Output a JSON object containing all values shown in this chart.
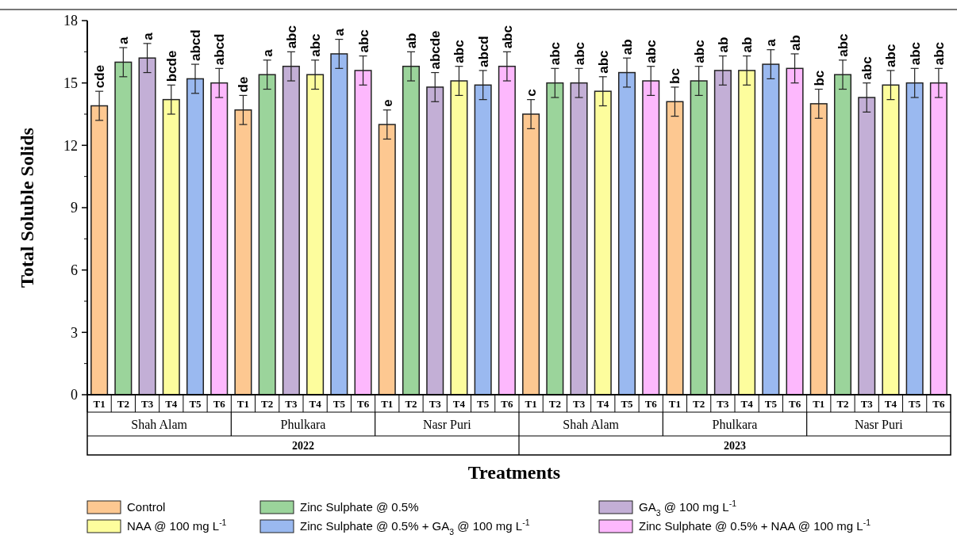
{
  "chart_data": {
    "type": "bar",
    "ylabel": "Total Soluble Solids",
    "xlabel": "Treatments",
    "categories": [
      "T1",
      "T2",
      "T3",
      "T4",
      "T5",
      "T6",
      "T1",
      "T2",
      "T3",
      "T4",
      "T5",
      "T6",
      "T1",
      "T2",
      "T3",
      "T4",
      "T5",
      "T6",
      "T1",
      "T2",
      "T3",
      "T4",
      "T5",
      "T6",
      "T1",
      "T2",
      "T3",
      "T4",
      "T5",
      "T6",
      "T1",
      "T2",
      "T3",
      "T4",
      "T5",
      "T6"
    ],
    "annotations": [
      "Shah Alam",
      "Phulkara",
      "Nasr Puri",
      "Shah Alam",
      "Phulkara",
      "Nasr Puri",
      "2022",
      "2023"
    ],
    "ylim": [
      0,
      18
    ],
    "yticks": [
      0,
      3,
      6,
      9,
      12,
      15,
      18
    ],
    "legend": "bottom",
    "series": [
      {
        "name": "Control",
        "color": "#fdc891",
        "values": [
          13.9,
          null,
          null,
          null,
          null,
          null,
          13.7,
          null,
          null,
          null,
          null,
          null,
          13.0,
          null,
          null,
          null,
          null,
          null,
          13.5,
          null,
          null,
          null,
          null,
          null,
          14.1,
          null,
          null,
          null,
          null,
          null,
          14.0,
          null,
          null,
          null,
          null,
          null
        ],
        "errors": [
          0.7,
          null,
          null,
          null,
          null,
          null,
          0.7,
          null,
          null,
          null,
          null,
          null,
          0.7,
          null,
          null,
          null,
          null,
          null,
          0.7,
          null,
          null,
          null,
          null,
          null,
          0.7,
          null,
          null,
          null,
          null,
          null,
          0.7,
          null,
          null,
          null,
          null,
          null
        ],
        "value_labels": [
          "cde",
          null,
          null,
          null,
          null,
          null,
          "de",
          null,
          null,
          null,
          null,
          null,
          "e",
          null,
          null,
          null,
          null,
          null,
          "c",
          null,
          null,
          null,
          null,
          null,
          "bc",
          null,
          null,
          null,
          null,
          null,
          "bc",
          null,
          null,
          null,
          null,
          null
        ]
      },
      {
        "name": "Zinc Sulphate @ 0.5%",
        "color": "#9bd49b",
        "values": [
          null,
          16.0,
          null,
          null,
          null,
          null,
          null,
          15.4,
          null,
          null,
          null,
          null,
          null,
          15.8,
          null,
          null,
          null,
          null,
          null,
          15.0,
          null,
          null,
          null,
          null,
          null,
          15.1,
          null,
          null,
          null,
          null,
          null,
          15.4,
          null,
          null,
          null,
          null
        ],
        "errors": [
          null,
          0.7,
          null,
          null,
          null,
          null,
          null,
          0.7,
          null,
          null,
          null,
          null,
          null,
          0.7,
          null,
          null,
          null,
          null,
          null,
          0.7,
          null,
          null,
          null,
          null,
          null,
          0.7,
          null,
          null,
          null,
          null,
          null,
          0.7,
          null,
          null,
          null,
          null
        ],
        "value_labels": [
          null,
          "a",
          null,
          null,
          null,
          null,
          null,
          "a",
          null,
          null,
          null,
          null,
          null,
          "ab",
          null,
          null,
          null,
          null,
          null,
          "abc",
          null,
          null,
          null,
          null,
          null,
          "abc",
          null,
          null,
          null,
          null,
          null,
          "abc",
          null,
          null,
          null,
          null
        ]
      },
      {
        "name": "GA$_{3}$ @ 100 mg L$^{-1}$",
        "color": "#c3afd6",
        "values": [
          null,
          null,
          16.2,
          null,
          null,
          null,
          null,
          null,
          15.8,
          null,
          null,
          null,
          null,
          null,
          14.8,
          null,
          null,
          null,
          null,
          null,
          15.0,
          null,
          null,
          null,
          null,
          null,
          15.6,
          null,
          null,
          null,
          null,
          null,
          14.3,
          null,
          null,
          null
        ],
        "errors": [
          null,
          null,
          0.7,
          null,
          null,
          null,
          null,
          null,
          0.7,
          null,
          null,
          null,
          null,
          null,
          0.7,
          null,
          null,
          null,
          null,
          null,
          0.7,
          null,
          null,
          null,
          null,
          null,
          0.7,
          null,
          null,
          null,
          null,
          null,
          0.7,
          null,
          null,
          null
        ],
        "value_labels": [
          null,
          null,
          "a",
          null,
          null,
          null,
          null,
          null,
          "abc",
          null,
          null,
          null,
          null,
          null,
          "abcde",
          null,
          null,
          null,
          null,
          null,
          "abc",
          null,
          null,
          null,
          null,
          null,
          "ab",
          null,
          null,
          null,
          null,
          null,
          "abc",
          null,
          null,
          null
        ]
      },
      {
        "name": "NAA @ 100 mg L$^{-1}$",
        "color": "#fdfd9d",
        "values": [
          null,
          null,
          null,
          14.2,
          null,
          null,
          null,
          null,
          null,
          15.4,
          null,
          null,
          null,
          null,
          null,
          15.1,
          null,
          null,
          null,
          null,
          null,
          14.6,
          null,
          null,
          null,
          null,
          null,
          15.6,
          null,
          null,
          null,
          null,
          null,
          14.9,
          null,
          null
        ],
        "errors": [
          null,
          null,
          null,
          0.7,
          null,
          null,
          null,
          null,
          null,
          0.7,
          null,
          null,
          null,
          null,
          null,
          0.7,
          null,
          null,
          null,
          null,
          null,
          0.7,
          null,
          null,
          null,
          null,
          null,
          0.7,
          null,
          null,
          null,
          null,
          null,
          0.7,
          null,
          null
        ],
        "value_labels": [
          null,
          null,
          null,
          "bcde",
          null,
          null,
          null,
          null,
          null,
          "abc",
          null,
          null,
          null,
          null,
          null,
          "abc",
          null,
          null,
          null,
          null,
          null,
          "abc",
          null,
          null,
          null,
          null,
          null,
          "ab",
          null,
          null,
          null,
          null,
          null,
          "abc",
          null,
          null
        ]
      },
      {
        "name": "Zinc Sulphate @ 0.5%  + GA$_{3}$ @ 100 mg L$^{-1}$",
        "color": "#9ab9f0",
        "values": [
          null,
          null,
          null,
          null,
          15.2,
          null,
          null,
          null,
          null,
          null,
          16.4,
          null,
          null,
          null,
          null,
          null,
          14.9,
          null,
          null,
          null,
          null,
          null,
          15.5,
          null,
          null,
          null,
          null,
          null,
          15.9,
          null,
          null,
          null,
          null,
          null,
          15.0,
          null
        ],
        "errors": [
          null,
          null,
          null,
          null,
          0.7,
          null,
          null,
          null,
          null,
          null,
          0.7,
          null,
          null,
          null,
          null,
          null,
          0.7,
          null,
          null,
          null,
          null,
          null,
          0.7,
          null,
          null,
          null,
          null,
          null,
          0.7,
          null,
          null,
          null,
          null,
          null,
          0.7,
          null
        ],
        "value_labels": [
          null,
          null,
          null,
          null,
          "abcd",
          null,
          null,
          null,
          null,
          null,
          "a",
          null,
          null,
          null,
          null,
          null,
          "abcd",
          null,
          null,
          null,
          null,
          null,
          "ab",
          null,
          null,
          null,
          null,
          null,
          "a",
          null,
          null,
          null,
          null,
          null,
          "abc",
          null
        ]
      },
      {
        "name": "Zinc Sulphate @ 0.5% + NAA @ 100 mg L$^{-1}$",
        "color": "#fdb8fd",
        "values": [
          null,
          null,
          null,
          null,
          null,
          15.0,
          null,
          null,
          null,
          null,
          null,
          15.6,
          null,
          null,
          null,
          null,
          null,
          15.8,
          null,
          null,
          null,
          null,
          null,
          15.1,
          null,
          null,
          null,
          null,
          null,
          15.7,
          null,
          null,
          null,
          null,
          null,
          15.0
        ],
        "errors": [
          null,
          null,
          null,
          null,
          null,
          0.7,
          null,
          null,
          null,
          null,
          null,
          0.7,
          null,
          null,
          null,
          null,
          null,
          0.7,
          null,
          null,
          null,
          null,
          null,
          0.7,
          null,
          null,
          null,
          null,
          null,
          0.7,
          null,
          null,
          null,
          null,
          null,
          0.7
        ],
        "value_labels": [
          null,
          null,
          null,
          null,
          null,
          "abcd",
          null,
          null,
          null,
          null,
          null,
          "abc",
          null,
          null,
          null,
          null,
          null,
          "abc",
          null,
          null,
          null,
          null,
          null,
          "abc",
          null,
          null,
          null,
          null,
          null,
          "ab",
          null,
          null,
          null,
          null,
          null,
          "abc"
        ]
      }
    ]
  }
}
